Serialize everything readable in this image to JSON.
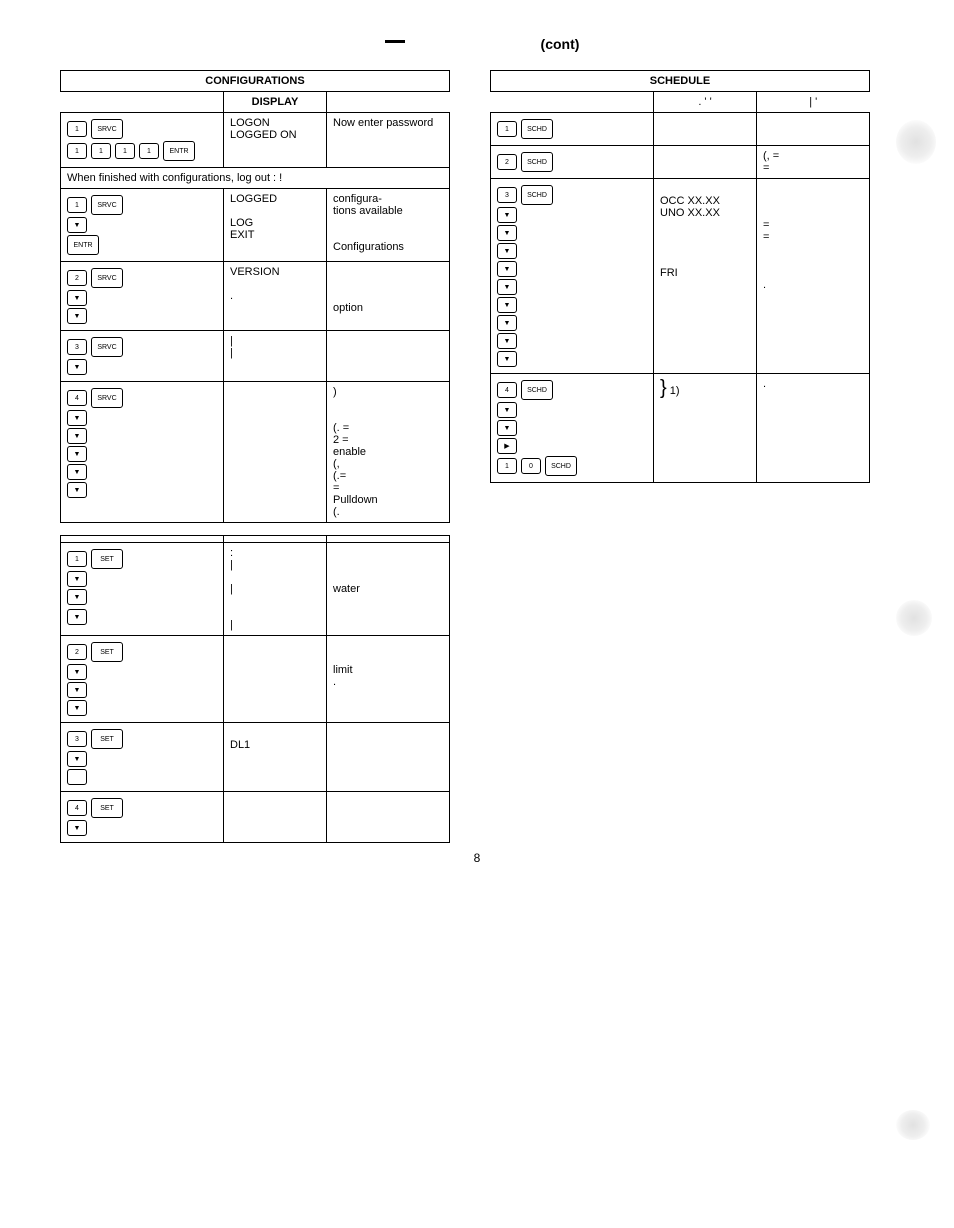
{
  "page_header": {
    "cont_label": "(cont)",
    "page_number": "8"
  },
  "config_table": {
    "title": "CONFIGURATIONS",
    "display_header": "DISPLAY",
    "note_row": "When finished with configurations, log out   : !",
    "rows": [
      {
        "keys": [
          [
            {
              "t": "1",
              "w": false
            },
            {
              "t": "SRVC",
              "w": true
            }
          ],
          [
            {
              "t": "1",
              "w": false
            },
            {
              "t": "1",
              "w": false
            },
            {
              "t": "1",
              "w": false
            },
            {
              "t": "1",
              "w": false
            },
            {
              "t": "ENTR",
              "w": true
            }
          ]
        ],
        "display": "LOGON\nLOGGED ON",
        "notes": "Now enter password"
      },
      {
        "keys": [
          [
            {
              "t": "1",
              "w": false
            },
            {
              "t": "SRVC",
              "w": true
            }
          ],
          [
            {
              "arrow": "down"
            }
          ],
          [
            {
              "t": "ENTR",
              "w": true
            }
          ]
        ],
        "display": "LOGGED\n\nLOG\nEXIT",
        "notes": "             configura-\ntions available\n\n\nConfigurations"
      },
      {
        "keys": [
          [
            {
              "t": "2",
              "w": false
            },
            {
              "t": "SRVC",
              "w": true
            }
          ],
          [
            {
              "arrow": "down"
            }
          ],
          [
            {
              "arrow": "down"
            }
          ]
        ],
        "display": "VERSION\n\n.",
        "notes": "\n\n\n                       option"
      },
      {
        "keys": [
          [
            {
              "t": "3",
              "w": false
            },
            {
              "t": "SRVC",
              "w": true
            }
          ],
          [
            {
              "arrow": "down"
            }
          ]
        ],
        "display": "|\n|",
        "notes": ""
      },
      {
        "keys": [
          [
            {
              "t": "4",
              "w": false
            },
            {
              "t": "SRVC",
              "w": true
            }
          ],
          [
            {
              "arrow": "down"
            }
          ],
          [
            {
              "arrow": "down"
            }
          ],
          [
            {
              "arrow": "down"
            }
          ],
          [
            {
              "arrow": "down"
            }
          ],
          [
            {
              "arrow": "down"
            }
          ]
        ],
        "display": "",
        "notes": "                              )\n\n\n            (. =\n2 =\n            enable\n(,\n            (.=\n   =\nPulldown\n(."
      }
    ]
  },
  "set_table": {
    "rows": [
      {
        "keys": [
          [
            {
              "t": "1",
              "w": false
            },
            {
              "t": "SET",
              "w": true
            }
          ],
          [
            {
              "arrow": "down"
            }
          ],
          [
            {
              "arrow": "down"
            }
          ],
          [],
          [
            {
              "arrow": "down"
            }
          ]
        ],
        "display": ":\n|\n\n|\n\n\n|",
        "notes": "\n\n\nwater"
      },
      {
        "keys": [
          [
            {
              "t": "2",
              "w": false
            },
            {
              "t": "SET",
              "w": true
            }
          ],
          [
            {
              "arrow": "down"
            }
          ],
          [
            {
              "arrow": "down"
            }
          ],
          [
            {
              "arrow": "down"
            }
          ]
        ],
        "display": "",
        "notes": "\n\n          limit\n."
      },
      {
        "keys": [
          [
            {
              "t": "3",
              "w": false
            },
            {
              "t": "SET",
              "w": true
            }
          ],
          [
            {
              "arrow": "down"
            }
          ],
          [
            {
              "t": "",
              "w": false,
              "blank": true
            }
          ]
        ],
        "display": "\nDL1",
        "notes": ""
      },
      {
        "keys": [
          [
            {
              "t": "4",
              "w": false
            },
            {
              "t": "SET",
              "w": true
            }
          ],
          [
            {
              "arrow": "down"
            }
          ]
        ],
        "display": "",
        "notes": ""
      }
    ]
  },
  "schedule_table": {
    "title": "SCHEDULE",
    "header_marks": [
      ".",
      "'",
      "'",
      "|",
      "'"
    ],
    "rows": [
      {
        "keys": [
          [
            {
              "t": "1",
              "w": false
            },
            {
              "t": "SCHD",
              "w": true
            }
          ]
        ],
        "display": "",
        "notes": ""
      },
      {
        "keys": [
          [
            {
              "t": "2",
              "w": false
            },
            {
              "t": "SCHD",
              "w": true
            }
          ]
        ],
        "display": "",
        "notes": "(,          =\n                ="
      },
      {
        "keys": [
          [
            {
              "t": "3",
              "w": false
            },
            {
              "t": "SCHD",
              "w": true
            }
          ],
          [
            {
              "arrow": "down"
            }
          ],
          [
            {
              "arrow": "down"
            }
          ],
          [
            {
              "arrow": "down"
            }
          ],
          [
            {
              "arrow": "down"
            }
          ],
          [
            {
              "arrow": "down"
            }
          ],
          [
            {
              "arrow": "down"
            }
          ],
          [
            {
              "arrow": "down"
            }
          ],
          [
            {
              "arrow": "down"
            }
          ],
          [
            {
              "arrow": "down"
            }
          ]
        ],
        "display": "\nOCC XX.XX\nUNO XX.XX\n\n\n\n\nFRI",
        "notes": "\n\n\n=\n        =\n\n\n\n            ."
      },
      {
        "keys": [
          [
            {
              "t": "4",
              "w": false
            },
            {
              "t": "SCHD",
              "w": true
            }
          ],
          [
            {
              "arrow": "down"
            }
          ],
          [
            {
              "arrow": "down"
            }
          ],
          [
            {
              "arrow": "right"
            }
          ],
          [
            {
              "t": "1",
              "w": false
            },
            {
              "t": "0",
              "w": false
            },
            {
              "t": "SCHD",
              "w": true
            }
          ]
        ],
        "display_brace": true,
        "display": "    1)",
        "notes": "                    ."
      }
    ]
  }
}
